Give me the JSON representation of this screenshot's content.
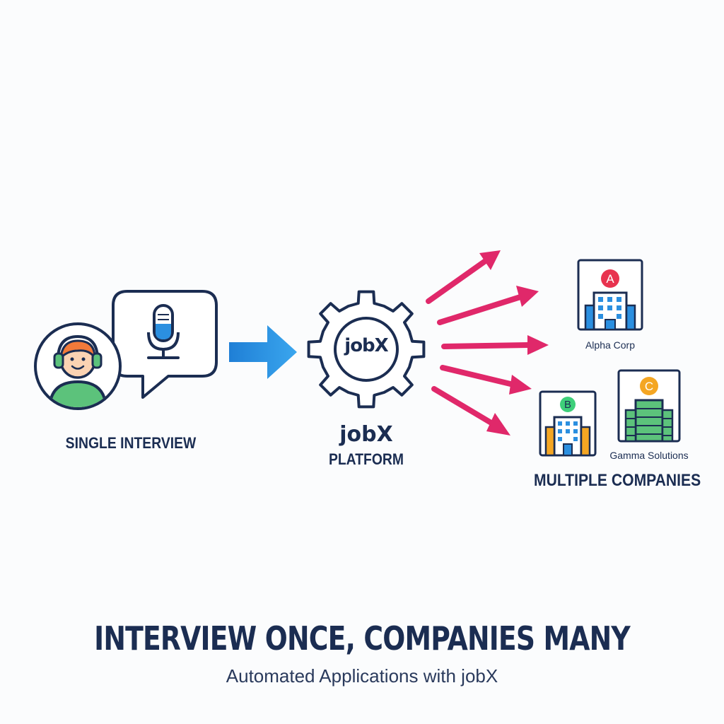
{
  "interview": {
    "label": "SINGLE INTERVIEW",
    "icons": [
      "person-with-headset",
      "microphone"
    ]
  },
  "platform": {
    "logo_text": "jobX",
    "label_line1": "jobX",
    "label_line2": "PLATFORM",
    "icon": "gear"
  },
  "companies": {
    "label": "MULTIPLE COMPANIES",
    "items": [
      {
        "badge": "A",
        "name": "Alpha Corp",
        "badge_color": "#e8334f"
      },
      {
        "badge": "B",
        "name": "",
        "badge_color": "#3ecf7a"
      },
      {
        "badge": "C",
        "name": "Gamma Solutions",
        "badge_color": "#f4a623"
      }
    ]
  },
  "footer": {
    "headline": "INTERVIEW ONCE, COMPANIES MANY",
    "subline": "Automated Applications with jobX"
  },
  "colors": {
    "navy": "#1b2d52",
    "blue_arrow": "#2b8fe0",
    "pink_arrow": "#e0286a",
    "green": "#5cc27b",
    "orange_hair": "#f27a3a"
  }
}
